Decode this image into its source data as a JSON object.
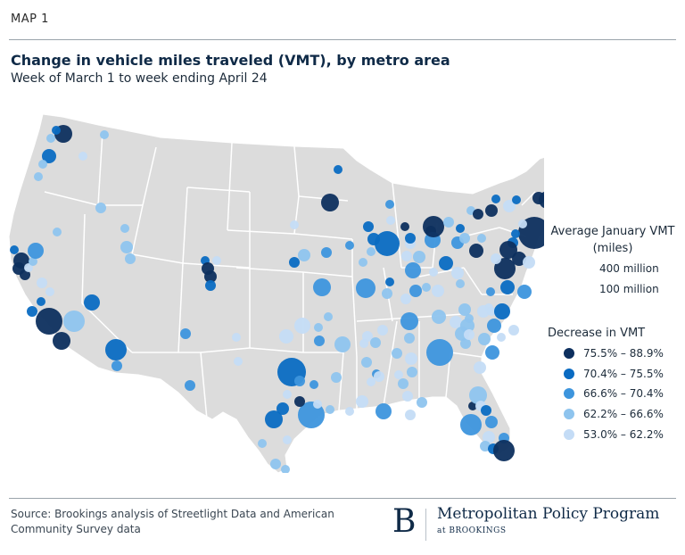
{
  "header": {
    "kicker": "MAP 1",
    "title": "Change in vehicle miles traveled (VMT), by metro area",
    "subtitle": "Week of March 1 to week ending April 24"
  },
  "legend": {
    "size_title": "Average January VMT (miles)",
    "size_large_label": "400 million",
    "size_small_label": "100 million",
    "color_title": "Decrease in VMT",
    "bins": [
      {
        "label": "75.5% – 88.9%",
        "color": "#0d2f5e"
      },
      {
        "label": "70.4% – 75.5%",
        "color": "#0a6bc2"
      },
      {
        "label": "66.6% – 70.4%",
        "color": "#3d95dd"
      },
      {
        "label": "62.2% – 66.6%",
        "color": "#8ec4ee"
      },
      {
        "label": "53.0% – 62.2%",
        "color": "#c4dcf6"
      }
    ]
  },
  "map": {
    "land_color": "#dcdcdc",
    "border_color": "#ffffff"
  },
  "footer": {
    "source": "Source: Brookings analysis of Streetlight Data and American Community Survey data",
    "brand_letter": "B",
    "brand_name": "Metropolitan Policy Program",
    "brand_sub": "at BROOKINGS"
  }
}
